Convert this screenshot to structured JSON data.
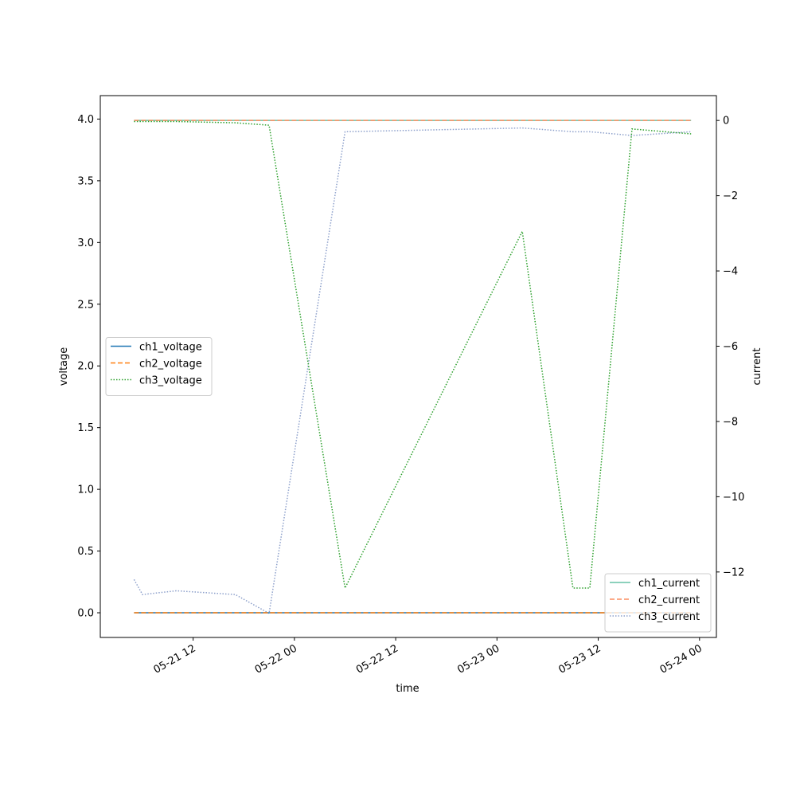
{
  "chart_data": {
    "type": "line",
    "x_label": "time",
    "y_label": "voltage",
    "y2_label": "current",
    "x": [
      "05-21 05",
      "05-21 06",
      "05-21 10",
      "05-21 17",
      "05-21 21",
      "05-22 06",
      "05-23 03",
      "05-23 09",
      "05-23 11",
      "05-23 16",
      "05-23 23"
    ],
    "xlim": [
      "05-21 01",
      "05-24 02"
    ],
    "xticks": [
      "05-21 12",
      "05-22 00",
      "05-22 12",
      "05-23 00",
      "05-23 12",
      "05-24 00"
    ],
    "ylim": [
      -0.2,
      4.19
    ],
    "yticks": [
      {
        "value": 0,
        "label": "0.0"
      },
      0.5,
      {
        "value": 1,
        "label": "1.0"
      },
      1.5,
      {
        "value": 2,
        "label": "2.0"
      },
      2.5,
      {
        "value": 3,
        "label": "3.0"
      },
      3.5,
      {
        "value": 4,
        "label": "4.0"
      }
    ],
    "y2lim": [
      -13.74,
      0.66
    ],
    "y2ticks": [
      {
        "value": -12,
        "label": "−12"
      },
      {
        "value": -10,
        "label": "−10"
      },
      {
        "value": -8,
        "label": "−8"
      },
      {
        "value": -6,
        "label": "−6"
      },
      {
        "value": -4,
        "label": "−4"
      },
      {
        "value": -2,
        "label": "−2"
      },
      0
    ],
    "legend": "center left",
    "legend2": "lower right",
    "series": [
      {
        "name": "ch1_voltage",
        "color": "#1f77b4",
        "style": "solid",
        "values": [
          0,
          0,
          0,
          0,
          0,
          0,
          0,
          0,
          0,
          0,
          0
        ]
      },
      {
        "name": "ch2_voltage",
        "color": "#ff7f0e",
        "style": "dashed",
        "values": [
          0,
          0,
          0,
          0,
          0,
          0,
          0,
          0,
          0,
          0,
          0
        ]
      },
      {
        "name": "ch3_voltage",
        "color": "#2ca02c",
        "style": "dotted",
        "values": [
          3.98,
          3.98,
          3.98,
          3.97,
          3.95,
          0.2,
          3.09,
          0.2,
          0.2,
          3.92,
          3.88
        ]
      },
      {
        "name": "ch1_current",
        "color": "#66c2a5",
        "style": "solid",
        "axis": "y2",
        "values": [
          0,
          0,
          0,
          0,
          0,
          0,
          0,
          0,
          0,
          0,
          0
        ]
      },
      {
        "name": "ch2_current",
        "color": "#fc8d62",
        "style": "dashed",
        "axis": "y2",
        "values": [
          0,
          0,
          0,
          0,
          0,
          0,
          0,
          0,
          0,
          0,
          0
        ]
      },
      {
        "name": "ch3_current",
        "color": "#8da0cb",
        "style": "dotted",
        "axis": "y2",
        "values": [
          -12.2,
          -12.6,
          -12.5,
          -12.6,
          -13.1,
          -0.3,
          -0.2,
          -0.3,
          -0.3,
          -0.4,
          -0.3
        ]
      }
    ]
  }
}
